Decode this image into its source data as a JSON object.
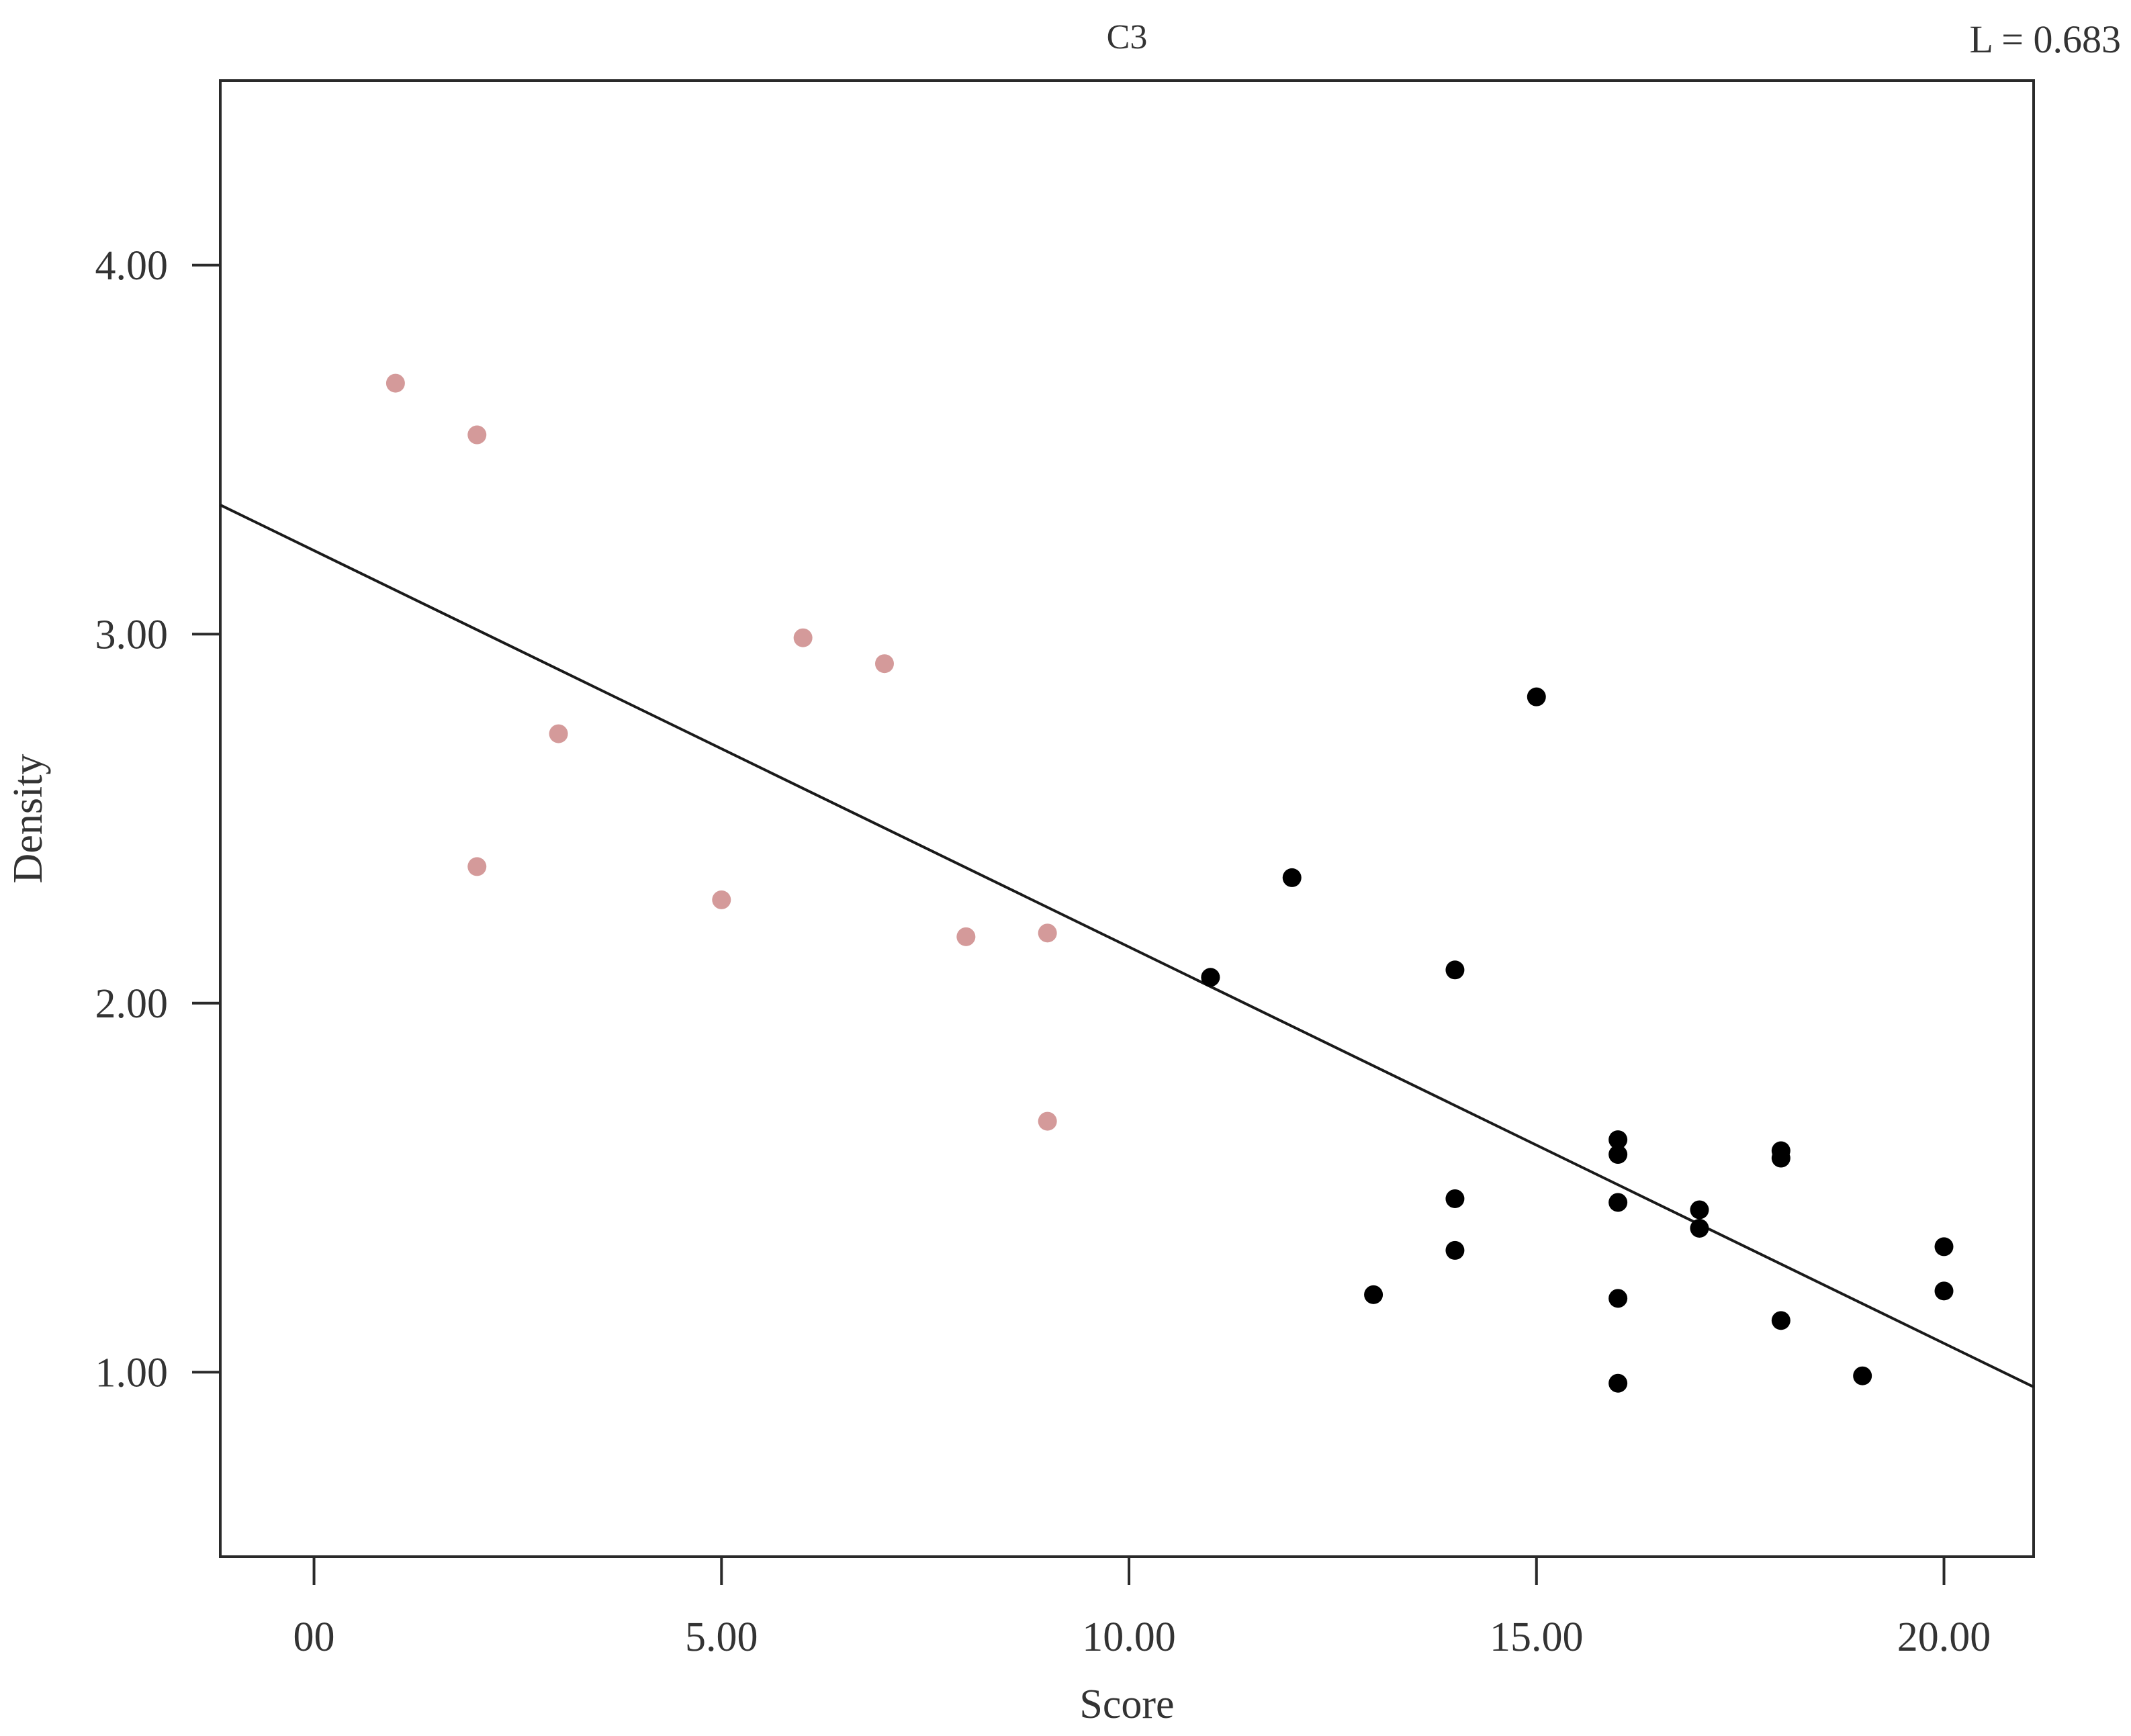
{
  "chart_data": {
    "type": "scatter",
    "title": "C3",
    "annotation": "L = 0.683",
    "xlabel": "Score",
    "ylabel": "Density",
    "xlim": [
      -1.15,
      21.1
    ],
    "ylim": [
      0.5,
      4.5
    ],
    "x_ticks": [
      0,
      5,
      10,
      15,
      20
    ],
    "x_tick_labels": [
      "00",
      "5.00",
      "10.00",
      "15.00",
      "20.00"
    ],
    "y_ticks": [
      1,
      2,
      3,
      4
    ],
    "y_tick_labels": [
      "1.00",
      "2.00",
      "3.00",
      "4.00"
    ],
    "grid": false,
    "series": [
      {
        "color": "#d49a9a",
        "points": [
          {
            "x": 1,
            "y": 3.68
          },
          {
            "x": 2,
            "y": 3.54
          },
          {
            "x": 2,
            "y": 2.37
          },
          {
            "x": 3,
            "y": 2.73
          },
          {
            "x": 5,
            "y": 2.28
          },
          {
            "x": 6,
            "y": 2.99
          },
          {
            "x": 7,
            "y": 2.92
          },
          {
            "x": 8,
            "y": 2.18
          },
          {
            "x": 9,
            "y": 2.19
          },
          {
            "x": 9,
            "y": 1.68
          }
        ]
      },
      {
        "color": "#000000",
        "points": [
          {
            "x": 11,
            "y": 2.07
          },
          {
            "x": 12,
            "y": 2.34
          },
          {
            "x": 13,
            "y": 1.21
          },
          {
            "x": 14,
            "y": 2.09
          },
          {
            "x": 14,
            "y": 1.47
          },
          {
            "x": 14,
            "y": 1.33
          },
          {
            "x": 15,
            "y": 2.83
          },
          {
            "x": 16,
            "y": 1.63
          },
          {
            "x": 16,
            "y": 1.59
          },
          {
            "x": 16,
            "y": 1.46
          },
          {
            "x": 16,
            "y": 1.2
          },
          {
            "x": 16,
            "y": 0.97
          },
          {
            "x": 17,
            "y": 1.44
          },
          {
            "x": 17,
            "y": 1.39
          },
          {
            "x": 18,
            "y": 1.6
          },
          {
            "x": 18,
            "y": 1.58
          },
          {
            "x": 18,
            "y": 1.14
          },
          {
            "x": 19,
            "y": 0.99
          },
          {
            "x": 20,
            "y": 1.34
          },
          {
            "x": 20,
            "y": 1.22
          }
        ]
      }
    ],
    "fit_line": {
      "x": [
        -1.15,
        21.1
      ],
      "y": [
        3.35,
        0.96
      ]
    }
  }
}
